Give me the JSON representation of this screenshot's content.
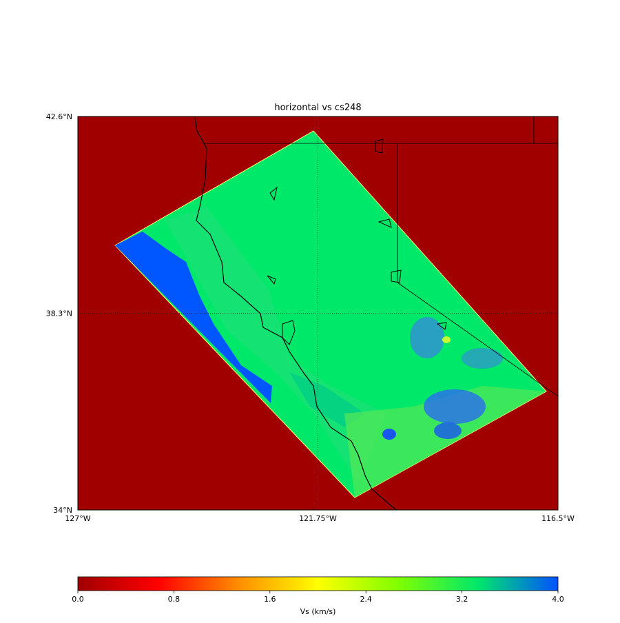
{
  "title": "horizontal vs cs248",
  "map": {
    "xlim": [
      -127,
      -116.5
    ],
    "ylim": [
      34,
      42.6
    ],
    "xticks": [
      {
        "value": -127,
        "label": "127°W"
      },
      {
        "value": -121.75,
        "label": "121.75°W"
      },
      {
        "value": -116.5,
        "label": "116.5°W"
      }
    ],
    "yticks": [
      {
        "value": 34,
        "label": "34°N"
      },
      {
        "value": 38.3,
        "label": "38.3°N"
      },
      {
        "value": 42.6,
        "label": "42.6°N"
      }
    ],
    "grid": true,
    "background": "#a00000"
  },
  "colorbar": {
    "label": "Vs (km/s)",
    "lim": [
      0,
      4
    ],
    "ticks": [
      {
        "value": 0,
        "label": "0.0"
      },
      0.8,
      1.6,
      2.4,
      3.2,
      {
        "value": 4,
        "label": "4.0"
      }
    ],
    "colors": [
      "#a00000",
      "#ff0000",
      "#ff8c00",
      "#ffff00",
      "#7fff00",
      "#00e86a",
      "#0050ff"
    ]
  }
}
